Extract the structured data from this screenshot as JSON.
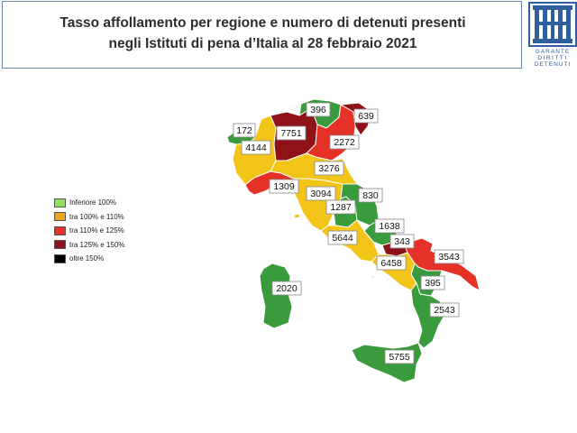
{
  "header": {
    "title_line1": "Tasso affollamento per regione e numero di detenuti presenti",
    "title_line2": "negli Istituti di pena d’Italia al 28 febbraio 2021"
  },
  "logo": {
    "icon": "garante-logo-icon",
    "text_lines": [
      "GARANTE",
      "DIRITTI",
      "DETENUTI"
    ]
  },
  "legend": {
    "items": [
      {
        "label": "Inferiore 100%",
        "color": "#92e058"
      },
      {
        "label": "tra 100% e 110%",
        "color": "#f4a11f"
      },
      {
        "label": "tra 110% e 125%",
        "color": "#e63127"
      },
      {
        "label": "tra 125% e 150%",
        "color": "#8e1218"
      },
      {
        "label": "oltre 150%",
        "color": "#000000"
      }
    ]
  },
  "map": {
    "regions": [
      {
        "name": "Valle d'Aosta",
        "detenuti": "172",
        "color": "#3a9b3c"
      },
      {
        "name": "Piemonte",
        "detenuti": "4144",
        "color": "#f2c518"
      },
      {
        "name": "Lombardia",
        "detenuti": "7751",
        "color": "#8e1218"
      },
      {
        "name": "Trentino-Alto Adige",
        "detenuti": "396",
        "color": "#3a9b3c"
      },
      {
        "name": "Veneto",
        "detenuti": "2272",
        "color": "#e63127"
      },
      {
        "name": "Friuli-Venezia Giulia",
        "detenuti": "639",
        "color": "#8e1218"
      },
      {
        "name": "Liguria",
        "detenuti": "1309",
        "color": "#e63127"
      },
      {
        "name": "Emilia-Romagna",
        "detenuti": "3276",
        "color": "#f2c518"
      },
      {
        "name": "Toscana",
        "detenuti": "3094",
        "color": "#f2c518"
      },
      {
        "name": "Umbria",
        "detenuti": "1287",
        "color": "#3a9b3c"
      },
      {
        "name": "Marche",
        "detenuti": "830",
        "color": "#3a9b3c"
      },
      {
        "name": "Lazio",
        "detenuti": "5644",
        "color": "#f2c518"
      },
      {
        "name": "Abruzzo",
        "detenuti": "1638",
        "color": "#3a9b3c"
      },
      {
        "name": "Molise",
        "detenuti": "343",
        "color": "#8e1218"
      },
      {
        "name": "Campania",
        "detenuti": "6458",
        "color": "#f2c518"
      },
      {
        "name": "Puglia",
        "detenuti": "3543",
        "color": "#e63127"
      },
      {
        "name": "Basilicata",
        "detenuti": "395",
        "color": "#3a9b3c"
      },
      {
        "name": "Calabria",
        "detenuti": "2543",
        "color": "#3a9b3c"
      },
      {
        "name": "Sicilia",
        "detenuti": "5755",
        "color": "#3a9b3c"
      },
      {
        "name": "Sardegna",
        "detenuti": "2020",
        "color": "#3a9b3c"
      }
    ]
  }
}
